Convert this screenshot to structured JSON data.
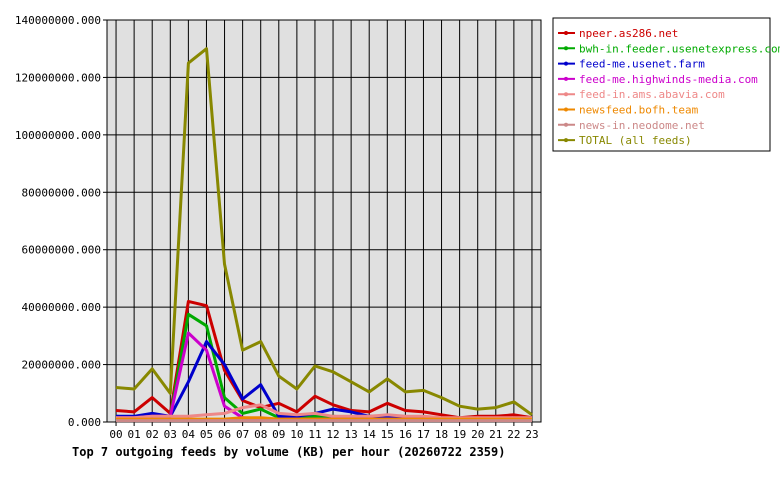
{
  "chart_data": {
    "type": "line",
    "title": "Top 7 outgoing feeds by volume (KB) per hour (20260722 2359)",
    "x": [
      "00",
      "01",
      "02",
      "03",
      "04",
      "05",
      "06",
      "07",
      "08",
      "09",
      "10",
      "11",
      "12",
      "13",
      "14",
      "15",
      "16",
      "17",
      "18",
      "19",
      "20",
      "21",
      "22",
      "23"
    ],
    "ylim": [
      0,
      140000000
    ],
    "yticks": [
      0,
      20000000,
      40000000,
      60000000,
      80000000,
      100000000,
      120000000,
      140000000
    ],
    "ytick_labels": [
      "0.000",
      "20000000.000",
      "40000000.000",
      "60000000.000",
      "80000000.000",
      "100000000.000",
      "120000000.000",
      "140000000.000"
    ],
    "grid": true,
    "legend_position": "right",
    "plot_background": "#e0e0e0",
    "series": [
      {
        "name": "npeer.as286.net",
        "color": "#cc0000",
        "values": [
          4000000,
          3500000,
          8500000,
          3000000,
          42000000,
          40500000,
          18000000,
          7500000,
          5000000,
          6500000,
          3500000,
          9000000,
          6000000,
          4000000,
          3500000,
          6500000,
          4000000,
          3500000,
          2500000,
          1500000,
          2000000,
          2000000,
          2500000,
          1500000
        ]
      },
      {
        "name": "bwh-in.feeder.usenetexpress.com",
        "color": "#00aa00",
        "values": [
          2000000,
          1500000,
          2500000,
          2000000,
          37500000,
          33500000,
          8500000,
          3000000,
          4500000,
          1500000,
          1500000,
          2000000,
          2000000,
          1500000,
          1500000,
          1000000,
          1000000,
          1000000,
          1000000,
          1000000,
          1000000,
          1000000,
          1000000,
          1000000
        ]
      },
      {
        "name": "feed-me.usenet.farm",
        "color": "#0000cc",
        "values": [
          2000000,
          2000000,
          3000000,
          2000000,
          14000000,
          28000000,
          20000000,
          8000000,
          13000000,
          2000000,
          2000000,
          3000000,
          4500000,
          3500000,
          2000000,
          2000000,
          1500000,
          1500000,
          1000000,
          1000000,
          1000000,
          1000000,
          1000000,
          1000000
        ]
      },
      {
        "name": "feed-me.highwinds-media.com",
        "color": "#cc00cc",
        "values": [
          1500000,
          1500000,
          2000000,
          2000000,
          31000000,
          25000000,
          5500000,
          1500000,
          1000000,
          1000000,
          1000000,
          1000000,
          1000000,
          1000000,
          1000000,
          1000000,
          1000000,
          1000000,
          1000000,
          1000000,
          1000000,
          1000000,
          1000000,
          1000000
        ]
      },
      {
        "name": "feed-in.ams.abavia.com",
        "color": "#ee8888",
        "values": [
          1500000,
          1500000,
          2000000,
          2000000,
          2000000,
          2500000,
          3000000,
          5000000,
          6000000,
          3000000,
          2500000,
          3000000,
          2000000,
          2000000,
          2000000,
          2500000,
          2000000,
          2000000,
          1500000,
          1500000,
          1500000,
          1500000,
          1500000,
          1500000
        ]
      },
      {
        "name": "newsfeed.bofh.team",
        "color": "#ee8800",
        "values": [
          1000000,
          1000000,
          1000000,
          1000000,
          1000000,
          1000000,
          1000000,
          1500000,
          1500000,
          1000000,
          1000000,
          1000000,
          1000000,
          1000000,
          1000000,
          1000000,
          1000000,
          1000000,
          1000000,
          1000000,
          1000000,
          1000000,
          1000000,
          1000000
        ]
      },
      {
        "name": "news-in.neodome.net",
        "color": "#cc8888",
        "values": [
          500000,
          500000,
          500000,
          500000,
          500000,
          500000,
          500000,
          500000,
          500000,
          500000,
          500000,
          500000,
          500000,
          500000,
          500000,
          500000,
          500000,
          500000,
          500000,
          500000,
          500000,
          500000,
          500000,
          500000
        ]
      },
      {
        "name": "TOTAL (all feeds)",
        "color": "#888800",
        "values": [
          12000000,
          11500000,
          18500000,
          10000000,
          125000000,
          130000000,
          55000000,
          25000000,
          28000000,
          16000000,
          11500000,
          19500000,
          17500000,
          14000000,
          10500000,
          15000000,
          10500000,
          11000000,
          8500000,
          5500000,
          4500000,
          5000000,
          7000000,
          2500000
        ]
      }
    ]
  }
}
